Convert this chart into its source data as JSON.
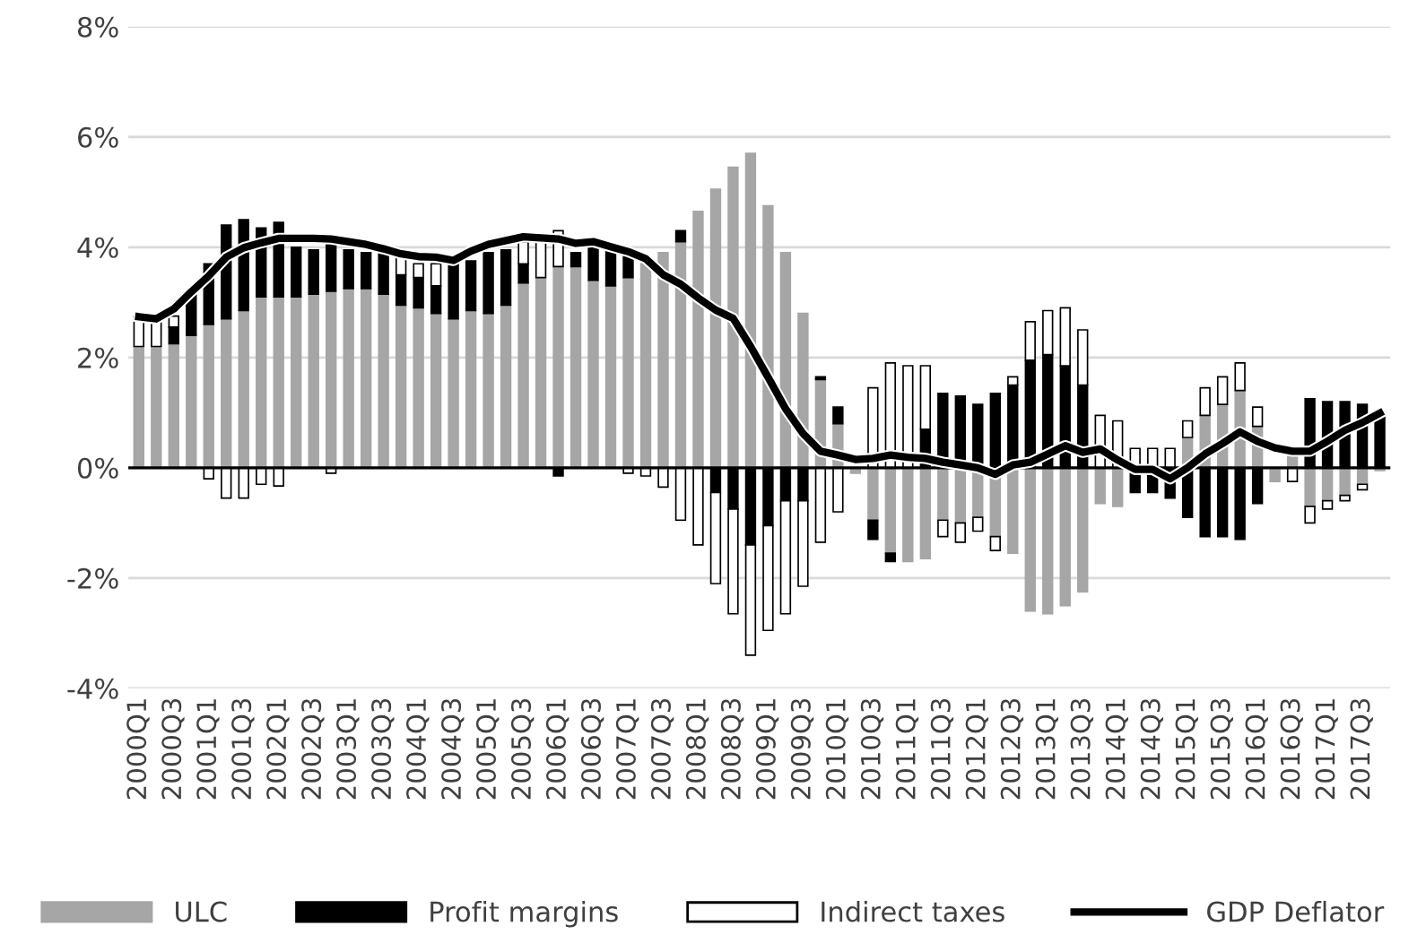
{
  "chart_data": {
    "type": "bar",
    "stacked": true,
    "categories": [
      "2000Q1",
      null,
      "2000Q3",
      null,
      "2001Q1",
      null,
      "2001Q3",
      null,
      "2002Q1",
      null,
      "2002Q3",
      null,
      "2003Q1",
      null,
      "2003Q3",
      null,
      "2004Q1",
      null,
      "2004Q3",
      null,
      "2005Q1",
      null,
      "2005Q3",
      null,
      "2006Q1",
      null,
      "2006Q3",
      null,
      "2007Q1",
      null,
      "2007Q3",
      null,
      "2008Q1",
      null,
      "2008Q3",
      null,
      "2009Q1",
      null,
      "2009Q3",
      null,
      "2010Q1",
      null,
      "2010Q3",
      null,
      "2011Q1",
      null,
      "2011Q3",
      null,
      "2012Q1",
      null,
      "2012Q3",
      null,
      "2013Q1",
      null,
      "2013Q3",
      null,
      "2014Q1",
      null,
      "2014Q3",
      null,
      "2015Q1",
      null,
      "2015Q3",
      null,
      "2016Q1",
      null,
      "2016Q3",
      null,
      "2017Q1",
      null,
      "2017Q3",
      null
    ],
    "series": [
      {
        "name": "ULC",
        "color": "#a6a6a6",
        "values": [
          2.2,
          2.2,
          2.25,
          2.4,
          2.6,
          2.7,
          2.85,
          3.1,
          3.1,
          3.1,
          3.15,
          3.2,
          3.25,
          3.25,
          3.15,
          2.95,
          2.9,
          2.8,
          2.7,
          2.85,
          2.8,
          2.95,
          3.35,
          3.45,
          3.65,
          3.65,
          3.4,
          3.3,
          3.45,
          3.75,
          3.9,
          4.1,
          4.65,
          5.05,
          5.45,
          5.7,
          4.75,
          3.9,
          2.8,
          1.6,
          0.8,
          -0.1,
          -0.95,
          -1.55,
          -1.7,
          -1.65,
          -0.95,
          -1.0,
          -0.9,
          -1.25,
          -1.55,
          -2.6,
          -2.65,
          -2.5,
          -2.25,
          -0.65,
          -0.7,
          0,
          0,
          0,
          0.55,
          0.95,
          1.15,
          1.4,
          0.75,
          -0.25,
          0.2,
          -0.7,
          -0.6,
          -0.5,
          -0.3,
          -0.05
        ]
      },
      {
        "name": "Profit margins",
        "color": "#000000",
        "values": [
          0,
          0,
          0.3,
          0.8,
          1.1,
          1.7,
          1.65,
          1.25,
          1.35,
          0.9,
          0.8,
          0.95,
          0.7,
          0.65,
          0.75,
          0.55,
          0.55,
          0.5,
          1.0,
          0.9,
          1.1,
          1.0,
          0.35,
          0,
          -0.15,
          0.25,
          0.65,
          0.7,
          0.5,
          null,
          0,
          0.2,
          0,
          -0.45,
          -0.75,
          -1.4,
          -1.05,
          -0.6,
          -0.6,
          0.05,
          0.3,
          0,
          -0.35,
          -0.15,
          0,
          0.7,
          1.35,
          1.3,
          1.15,
          1.35,
          1.5,
          1.95,
          2.05,
          1.85,
          1.5,
          0,
          0,
          -0.45,
          -0.45,
          -0.55,
          -0.9,
          -1.25,
          -1.25,
          -1.3,
          -0.65,
          0,
          null,
          1.25,
          1.2,
          1.2,
          1.15,
          1.0
        ]
      },
      {
        "name": "Indirect taxes",
        "color": "#ffffff",
        "values": [
          0.55,
          0.5,
          0.2,
          0,
          -0.2,
          -0.55,
          -0.55,
          -0.3,
          -0.33,
          null,
          0,
          -0.1,
          0,
          0,
          0,
          0.4,
          0.25,
          0.4,
          0,
          0,
          0,
          0,
          0.4,
          0.65,
          0.65,
          0,
          0,
          0,
          -0.1,
          -0.15,
          -0.35,
          -0.95,
          -1.4,
          -1.65,
          -1.9,
          -2.0,
          -1.9,
          -2.05,
          -1.55,
          -1.35,
          -0.8,
          0,
          1.45,
          1.9,
          1.85,
          1.15,
          -0.3,
          -0.35,
          -0.25,
          -0.25,
          0.15,
          0.7,
          0.8,
          1.05,
          1.0,
          0.95,
          0.85,
          0.35,
          0.35,
          0.35,
          0.3,
          0.5,
          0.5,
          0.5,
          0.35,
          0,
          -0.25,
          -0.3,
          -0.15,
          -0.1,
          -0.1,
          0
        ]
      },
      {
        "name": "GDP Deflator",
        "type": "line",
        "color": "#000000",
        "values": [
          2.74,
          2.7,
          2.88,
          3.19,
          3.48,
          3.82,
          3.99,
          4.08,
          4.16,
          4.16,
          4.16,
          4.15,
          4.1,
          4.05,
          3.97,
          3.88,
          3.83,
          3.82,
          3.76,
          3.93,
          4.05,
          4.12,
          4.19,
          4.17,
          4.15,
          4.07,
          4.1,
          4.01,
          3.92,
          3.79,
          3.5,
          3.33,
          3.08,
          2.86,
          2.71,
          2.2,
          1.64,
          1.07,
          0.62,
          0.3,
          0.23,
          0.15,
          0.17,
          0.23,
          0.19,
          0.17,
          0.1,
          0.05,
          0.0,
          -0.12,
          0.05,
          0.1,
          0.25,
          0.4,
          0.28,
          0.34,
          0.14,
          -0.03,
          -0.03,
          -0.2,
          0.0,
          0.25,
          0.44,
          0.65,
          0.48,
          0.36,
          0.3,
          0.3,
          0.48,
          0.68,
          0.82,
          0.99
        ]
      }
    ],
    "ylim": [
      -4,
      8
    ],
    "yticks": [
      {
        "value": -4,
        "label": "-4%"
      },
      {
        "value": -2,
        "label": "-2%"
      },
      {
        "value": 0,
        "label": "0%"
      },
      {
        "value": 2,
        "label": "2%"
      },
      {
        "value": 4,
        "label": "4%"
      },
      {
        "value": 6,
        "label": "6%"
      },
      {
        "value": 8,
        "label": "8%"
      }
    ],
    "grid": "y",
    "legend": "bottom",
    "line_style": "solid",
    "marker": "none"
  }
}
